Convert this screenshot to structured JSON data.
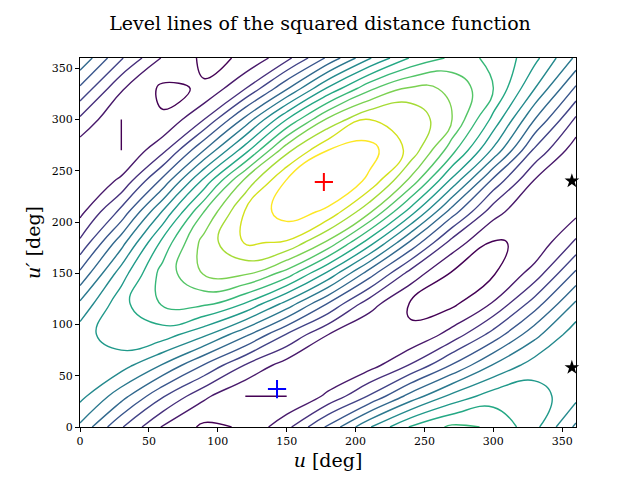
{
  "chart_data": {
    "type": "contour",
    "title": "Level lines of the squared distance function",
    "x_label": "u [deg]",
    "y_label": "u′ [deg]",
    "x": [
      0,
      30,
      60,
      90,
      120,
      150,
      180,
      210,
      240,
      270,
      300,
      330,
      360
    ],
    "y": [
      0,
      30,
      60,
      90,
      120,
      150,
      180,
      210,
      240,
      270,
      300,
      330,
      360
    ],
    "z": [
      [
        0.98,
        0.71,
        0.49,
        0.38,
        0.41,
        0.57,
        0.82,
        1.09,
        1.31,
        1.42,
        1.39,
        1.23,
        0.98
      ],
      [
        1.13,
        0.94,
        0.71,
        0.52,
        0.4,
        0.4,
        0.52,
        0.71,
        0.94,
        1.13,
        1.25,
        1.25,
        1.13
      ],
      [
        1.2,
        1.14,
        0.99,
        0.79,
        0.59,
        0.45,
        0.4,
        0.46,
        0.61,
        0.81,
        1.01,
        1.15,
        1.2
      ],
      [
        1.16,
        1.26,
        1.25,
        1.12,
        0.92,
        0.69,
        0.5,
        0.4,
        0.41,
        0.54,
        0.74,
        0.97,
        1.16
      ],
      [
        1.02,
        1.27,
        1.41,
        1.42,
        1.29,
        1.06,
        0.79,
        0.54,
        0.39,
        0.38,
        0.51,
        0.75,
        1.02
      ],
      [
        0.82,
        1.15,
        1.44,
        1.61,
        1.62,
        1.46,
        1.18,
        0.85,
        0.56,
        0.39,
        0.39,
        0.54,
        0.82
      ],
      [
        0.62,
        0.96,
        1.33,
        1.64,
        1.81,
        1.79,
        1.58,
        1.25,
        0.88,
        0.56,
        0.39,
        0.42,
        0.62
      ],
      [
        0.47,
        0.73,
        1.11,
        1.5,
        1.81,
        1.95,
        1.88,
        1.62,
        1.25,
        0.85,
        0.54,
        0.4,
        0.47
      ],
      [
        0.4,
        0.52,
        0.83,
        1.23,
        1.63,
        1.91,
        2.0,
        1.88,
        1.57,
        1.17,
        0.77,
        0.49,
        0.4
      ],
      [
        0.44,
        0.4,
        0.57,
        0.9,
        1.26,
        1.67,
        1.9,
        1.94,
        1.77,
        1.44,
        1.08,
        0.68,
        0.44
      ],
      [
        0.58,
        0.4,
        0.41,
        0.6,
        0.93,
        1.3,
        1.62,
        1.8,
        1.79,
        1.6,
        1.27,
        0.9,
        0.58
      ],
      [
        0.78,
        0.51,
        0.38,
        0.41,
        0.6,
        0.89,
        1.22,
        1.48,
        1.62,
        1.59,
        1.4,
        1.1,
        0.78
      ],
      [
        0.98,
        0.71,
        0.49,
        0.38,
        0.41,
        0.57,
        0.82,
        1.09,
        1.31,
        1.42,
        1.39,
        1.23,
        0.98
      ]
    ],
    "points": [
      {
        "x": 177,
        "y": 239,
        "color": "red",
        "marker": "plus"
      },
      {
        "x": 143,
        "y": 37,
        "color": "blue",
        "marker": "plus"
      },
      {
        "x": 357,
        "y": 240,
        "color": "black",
        "marker": "star"
      },
      {
        "x": 357,
        "y": 58,
        "color": "black",
        "marker": "star"
      }
    ],
    "xlim": [
      0,
      360
    ],
    "ylim": [
      0,
      360
    ],
    "xticks": [
      0,
      50,
      100,
      150,
      200,
      250,
      300,
      350
    ],
    "yticks": [
      0,
      50,
      100,
      150,
      200,
      250,
      300,
      350
    ],
    "grid": false
  }
}
